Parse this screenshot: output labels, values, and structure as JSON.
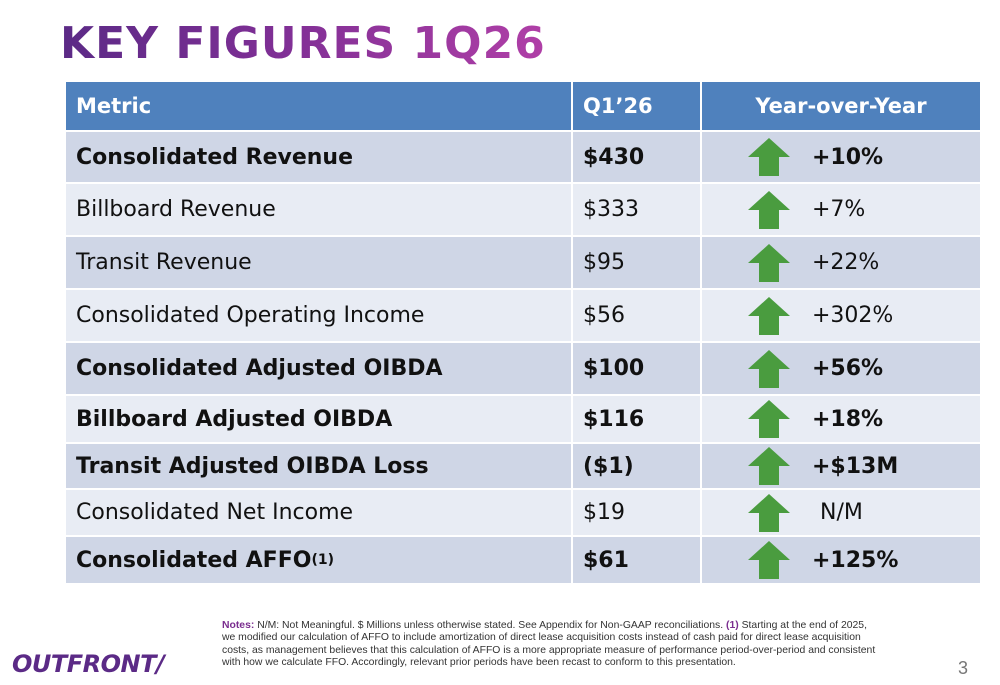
{
  "title": "KEY FIGURES 1Q26",
  "table": {
    "headers": {
      "metric": "Metric",
      "quarter": "Q1’26",
      "yoy": "Year-over-Year"
    },
    "rows": [
      {
        "metric": "Consolidated Revenue",
        "value": "$430",
        "yoy": "+10%",
        "bold": true,
        "direction": "up"
      },
      {
        "metric": "Billboard Revenue",
        "value": "$333",
        "yoy": "+7%",
        "bold": false,
        "direction": "up"
      },
      {
        "metric": "Transit Revenue",
        "value": "$95",
        "yoy": "+22%",
        "bold": false,
        "direction": "up"
      },
      {
        "metric": "Consolidated Operating Income",
        "value": "$56",
        "yoy": "+302%",
        "bold": false,
        "direction": "up"
      },
      {
        "metric": "Consolidated Adjusted OIBDA",
        "value": "$100",
        "yoy": "+56%",
        "bold": true,
        "direction": "up"
      },
      {
        "metric": "Billboard Adjusted OIBDA",
        "value": "$116",
        "yoy": "+18%",
        "bold": true,
        "direction": "up"
      },
      {
        "metric": "Transit Adjusted OIBDA Loss",
        "value": "($1)",
        "yoy": "+$13M",
        "bold": true,
        "direction": "up"
      },
      {
        "metric": "Consolidated Net Income",
        "value": "$19",
        "yoy": "N/M",
        "bold": false,
        "direction": "up"
      },
      {
        "metric": "Consolidated AFFO",
        "metric_superscript": "(1)",
        "value": "$61",
        "yoy": "+125%",
        "bold": true,
        "direction": "up"
      }
    ]
  },
  "notes": {
    "label": "Notes:",
    "text_before": " N/M: Not Meaningful. $ Millions unless otherwise stated. See Appendix for Non-GAAP reconciliations. ",
    "footnote_marker": "(1)",
    "text_after": " Starting at the end of 2025, we modified our calculation of AFFO to include amortization of direct lease acquisition costs instead of cash paid for direct lease acquisition costs, as management believes that this calculation of AFFO is a more appropriate measure of performance period-over-period and consistent with how we calculate FFO. Accordingly, relevant prior periods have been recast to conform to this presentation."
  },
  "logo": "OUTFRONT/",
  "page_number": "3",
  "colors": {
    "header_bg": "#4f81bd",
    "row_dark": "#cfd6e6",
    "row_light": "#e8ecf4",
    "arrow": "#4a9c3f",
    "brand_purple": "#5b2a86"
  },
  "icons": {
    "trend": "green-up-arrow-icon"
  }
}
